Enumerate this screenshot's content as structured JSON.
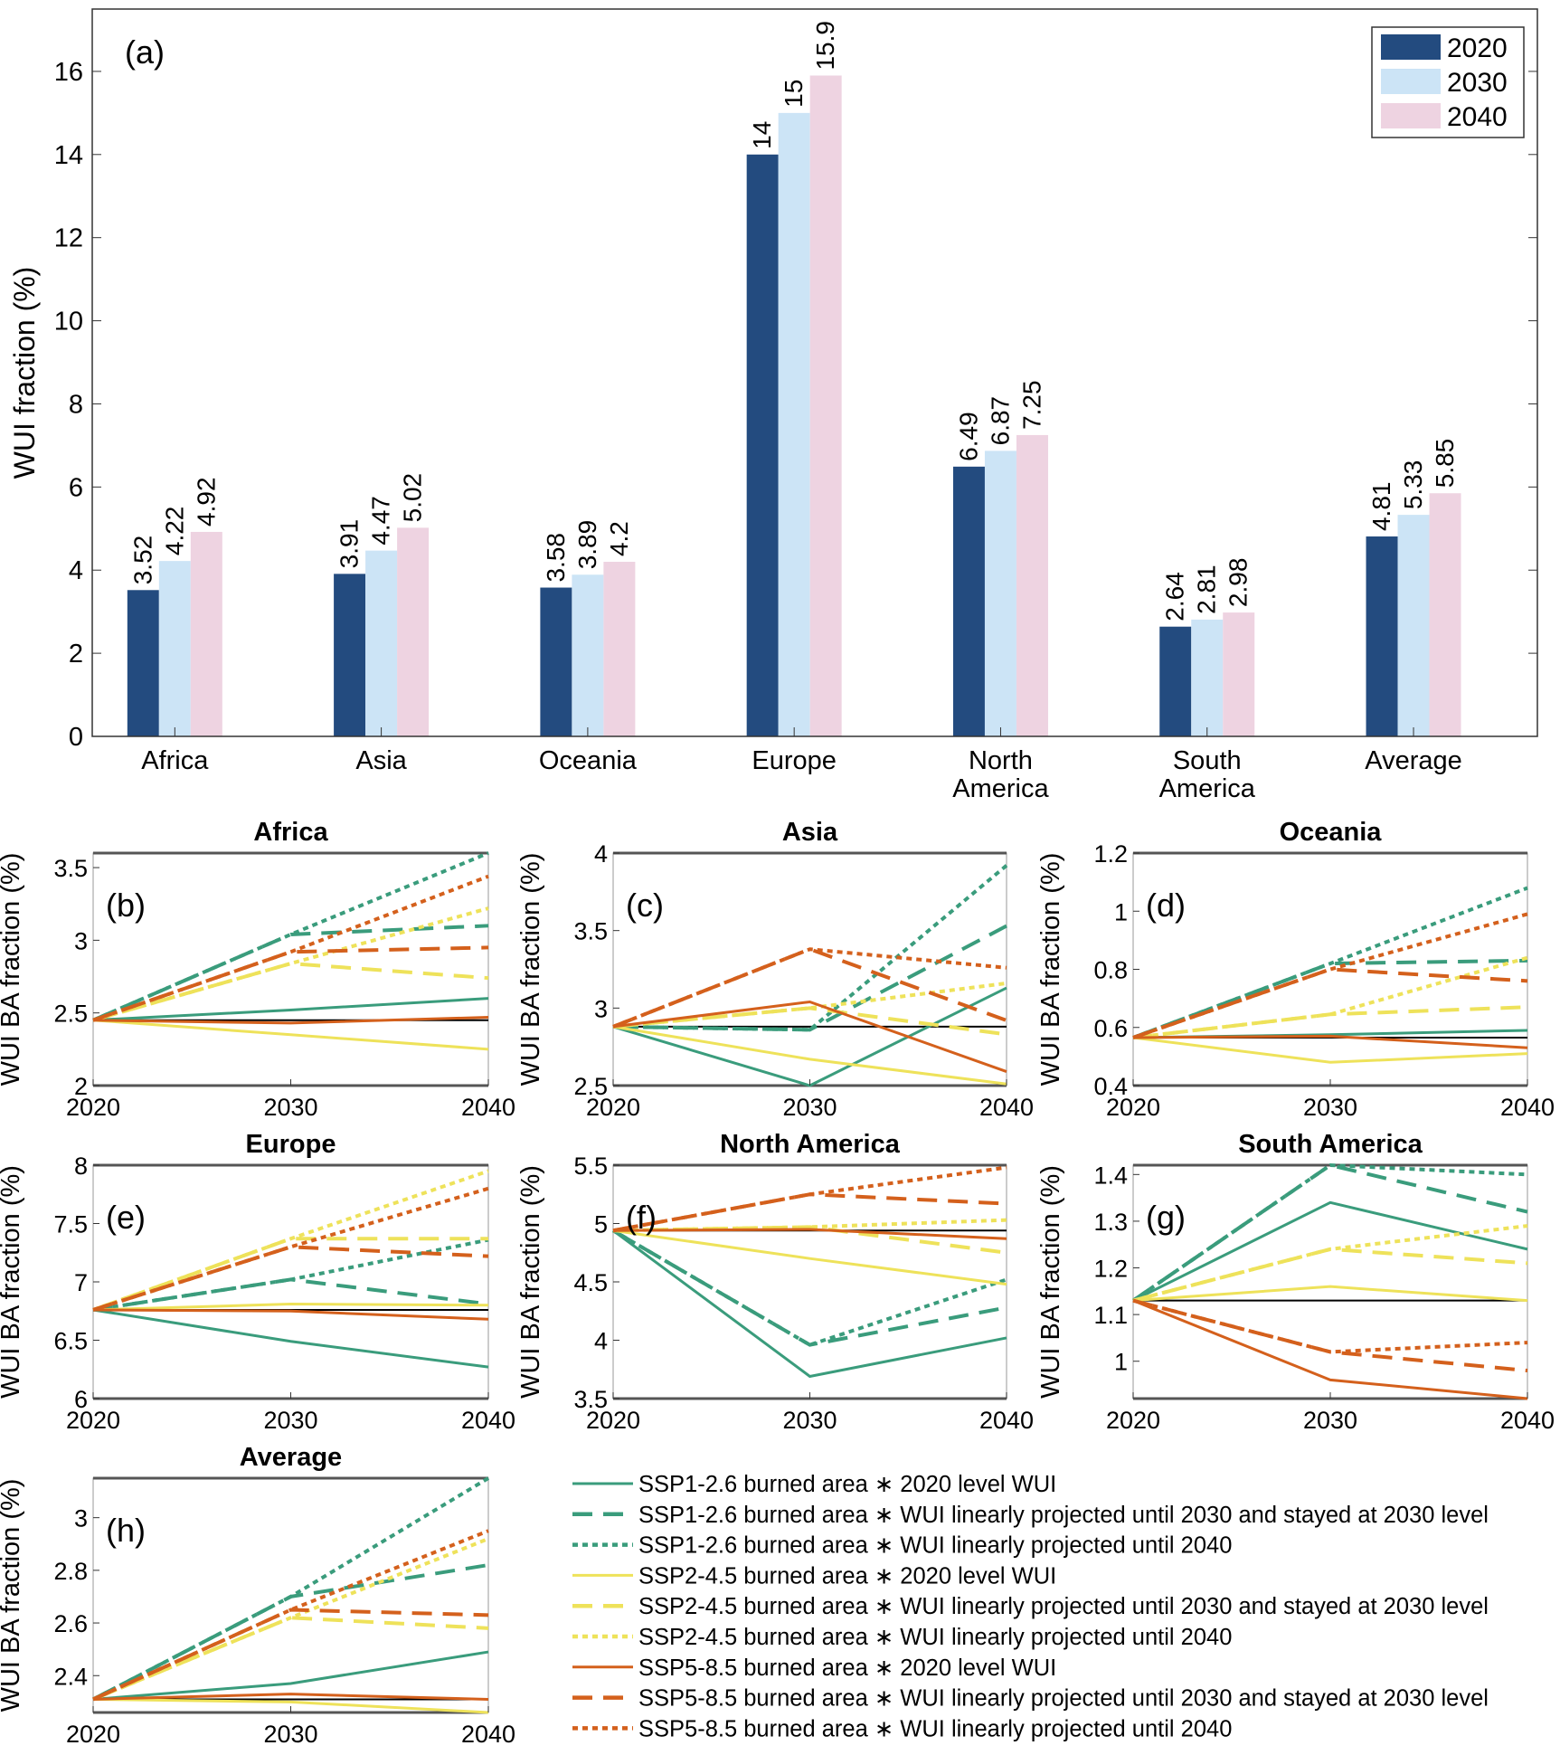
{
  "chart_data": [
    {
      "type": "bar",
      "panel_label": "(a)",
      "ylabel": "WUI fraction (%)",
      "ylim": [
        0,
        17.5
      ],
      "xlim": [
        0.6,
        7.6
      ],
      "yticks": [
        0,
        2,
        4,
        6,
        8,
        10,
        12,
        14,
        16
      ],
      "categories": [
        "Africa",
        "Asia",
        "Oceania",
        "Europe",
        "North America",
        "South America",
        "Average"
      ],
      "series": [
        {
          "name": "2020",
          "color": "#234b7f",
          "values": [
            3.52,
            3.91,
            3.58,
            14,
            6.49,
            2.64,
            4.81
          ],
          "labels": [
            "3.52",
            "3.91",
            "3.58",
            "14",
            "6.49",
            "2.64",
            "4.81"
          ]
        },
        {
          "name": "2030",
          "color": "#cce4f6",
          "values": [
            4.22,
            4.47,
            3.89,
            15,
            6.87,
            2.81,
            5.33
          ],
          "labels": [
            "4.22",
            "4.47",
            "3.89",
            "15",
            "6.87",
            "2.81",
            "5.33"
          ]
        },
        {
          "name": "2040",
          "color": "#eed3e1",
          "values": [
            4.92,
            5.02,
            4.2,
            15.9,
            7.25,
            2.98,
            5.85
          ],
          "labels": [
            "4.92",
            "5.02",
            "4.2",
            "15.9",
            "7.25",
            "2.98",
            "5.85"
          ]
        }
      ],
      "legend_placement": "top-right",
      "grid": false
    },
    {
      "type": "line",
      "line_panels": [
        {
          "title": "Africa",
          "panel_label": "(b)",
          "ylim": [
            2,
            3.6
          ],
          "yticks": [
            2,
            2.5,
            3,
            3.5
          ],
          "baseline": 2.45,
          "values": [
            [
              2.45,
              2.52,
              2.6
            ],
            [
              2.45,
              3.04,
              3.1
            ],
            [
              2.45,
              3.04,
              3.62
            ],
            [
              2.45,
              2.35,
              2.25
            ],
            [
              2.45,
              2.84,
              2.74
            ],
            [
              2.45,
              2.84,
              3.22
            ],
            [
              2.45,
              2.43,
              2.47
            ],
            [
              2.45,
              2.92,
              2.95
            ],
            [
              2.45,
              2.92,
              3.44
            ]
          ]
        },
        {
          "title": "Asia",
          "panel_label": "(c)",
          "ylim": [
            2.5,
            4
          ],
          "yticks": [
            2.5,
            3,
            3.5,
            4
          ],
          "baseline": 2.88,
          "values": [
            [
              2.88,
              2.48,
              3.13
            ],
            [
              2.88,
              2.86,
              3.53
            ],
            [
              2.88,
              2.86,
              3.92
            ],
            [
              2.88,
              2.67,
              2.51
            ],
            [
              2.88,
              3.0,
              2.83
            ],
            [
              2.88,
              3.0,
              3.16
            ],
            [
              2.88,
              3.04,
              2.59
            ],
            [
              2.88,
              3.38,
              2.92
            ],
            [
              2.88,
              3.38,
              3.26
            ]
          ]
        },
        {
          "title": "Oceania",
          "panel_label": "(d)",
          "ylim": [
            0.4,
            1.2
          ],
          "yticks": [
            0.4,
            0.6,
            0.8,
            1,
            1.2
          ],
          "baseline": 0.565,
          "values": [
            [
              0.565,
              0.575,
              0.59
            ],
            [
              0.565,
              0.82,
              0.83
            ],
            [
              0.565,
              0.82,
              1.08
            ],
            [
              0.565,
              0.48,
              0.51
            ],
            [
              0.565,
              0.645,
              0.67
            ],
            [
              0.565,
              0.645,
              0.84
            ],
            [
              0.565,
              0.57,
              0.53
            ],
            [
              0.565,
              0.8,
              0.76
            ],
            [
              0.565,
              0.8,
              0.99
            ]
          ]
        },
        {
          "title": "Europe",
          "panel_label": "(e)",
          "ylim": [
            6,
            8
          ],
          "yticks": [
            6,
            6.5,
            7,
            7.5,
            8
          ],
          "baseline": 6.76,
          "values": [
            [
              6.76,
              6.49,
              6.27
            ],
            [
              6.76,
              7.02,
              6.81
            ],
            [
              6.76,
              7.02,
              7.36
            ],
            [
              6.76,
              6.81,
              6.8
            ],
            [
              6.76,
              7.37,
              7.37
            ],
            [
              6.76,
              7.37,
              7.95
            ],
            [
              6.76,
              6.75,
              6.68
            ],
            [
              6.76,
              7.3,
              7.22
            ],
            [
              6.76,
              7.3,
              7.8
            ]
          ]
        },
        {
          "title": "North America",
          "panel_label": "(f)",
          "ylim": [
            3.5,
            5.5
          ],
          "yticks": [
            3.5,
            4,
            4.5,
            5,
            5.5
          ],
          "baseline": 4.94,
          "values": [
            [
              4.94,
              3.69,
              4.02
            ],
            [
              4.94,
              3.96,
              4.28
            ],
            [
              4.94,
              3.96,
              4.52
            ],
            [
              4.94,
              4.7,
              4.48
            ],
            [
              4.94,
              4.97,
              4.75
            ],
            [
              4.94,
              4.97,
              5.03
            ],
            [
              4.94,
              4.95,
              4.87
            ],
            [
              4.94,
              5.25,
              5.17
            ],
            [
              4.94,
              5.25,
              5.48
            ]
          ]
        },
        {
          "title": "South America",
          "panel_label": "(g)",
          "ylim": [
            0.92,
            1.42
          ],
          "yticks": [
            1,
            1.1,
            1.2,
            1.3,
            1.4
          ],
          "baseline": 1.13,
          "values": [
            [
              1.13,
              1.34,
              1.24
            ],
            [
              1.13,
              1.42,
              1.32
            ],
            [
              1.13,
              1.42,
              1.4
            ],
            [
              1.13,
              1.16,
              1.13
            ],
            [
              1.13,
              1.24,
              1.21
            ],
            [
              1.13,
              1.24,
              1.29
            ],
            [
              1.13,
              0.96,
              0.92
            ],
            [
              1.13,
              1.02,
              0.98
            ],
            [
              1.13,
              1.02,
              1.04
            ]
          ]
        },
        {
          "title": "Average",
          "panel_label": "(h)",
          "ylim": [
            2.26,
            3.15
          ],
          "yticks": [
            2.4,
            2.6,
            2.8,
            3
          ],
          "baseline": 2.31,
          "values": [
            [
              2.31,
              2.37,
              2.49
            ],
            [
              2.31,
              2.7,
              2.82
            ],
            [
              2.31,
              2.7,
              3.15
            ],
            [
              2.31,
              2.3,
              2.26
            ],
            [
              2.31,
              2.62,
              2.58
            ],
            [
              2.31,
              2.62,
              2.92
            ],
            [
              2.31,
              2.33,
              2.31
            ],
            [
              2.31,
              2.65,
              2.63
            ],
            [
              2.31,
              2.65,
              2.95
            ]
          ]
        }
      ],
      "x": [
        2020,
        2030,
        2040
      ],
      "xticks": [
        "2020",
        "2030",
        "2040"
      ],
      "ylabel": "WUI BA fraction (%)",
      "baseline_color": "#000000",
      "series": [
        {
          "name": "SSP1-2.6 burned area ∗ 2020 level WUI",
          "color": "#3a9c7c",
          "style": "solid"
        },
        {
          "name": "SSP1-2.6 burned area ∗ WUI linearly projected until 2030 and stayed at 2030 level",
          "color": "#3a9c7c",
          "style": "dashed"
        },
        {
          "name": "SSP1-2.6 burned area ∗ WUI linearly projected until 2040",
          "color": "#3a9c7c",
          "style": "dotted"
        },
        {
          "name": "SSP2-4.5 burned area ∗ 2020 level WUI",
          "color": "#eee25a",
          "style": "solid"
        },
        {
          "name": "SSP2-4.5 burned area ∗ WUI linearly projected until 2030 and stayed at 2030 level",
          "color": "#eee25a",
          "style": "dashed"
        },
        {
          "name": "SSP2-4.5 burned area ∗ WUI linearly projected until 2040",
          "color": "#eee25a",
          "style": "dotted"
        },
        {
          "name": "SSP5-8.5 burned area ∗ 2020 level WUI",
          "color": "#d4601c",
          "style": "solid"
        },
        {
          "name": "SSP5-8.5 burned area ∗ WUI linearly projected until 2030 and stayed at 2030 level",
          "color": "#d4601c",
          "style": "dashed"
        },
        {
          "name": "SSP5-8.5 burned area ∗ WUI linearly projected until 2040",
          "color": "#d4601c",
          "style": "dotted"
        }
      ],
      "legend_placement": "bottom-right",
      "grid": false
    }
  ]
}
